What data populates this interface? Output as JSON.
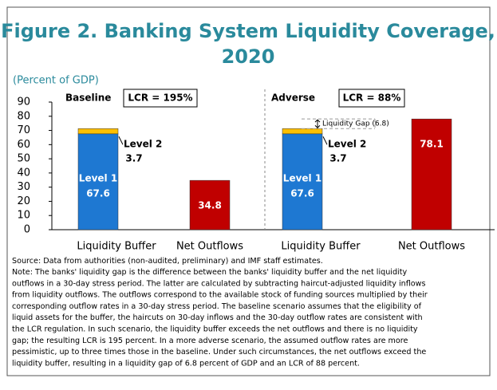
{
  "chart_data": {
    "type": "bar",
    "stacked": true,
    "title": [
      "Figure 2. Banking System Liquidity Coverage,",
      "2020"
    ],
    "subtitle": "(Percent of GDP)",
    "categories": [
      "Liquidity Buffer",
      "Net Outflows",
      "Liquidity Buffer",
      "Net Outflows"
    ],
    "series": [
      {
        "name": "Level 1",
        "color": "#1e78d2",
        "values": [
          67.6,
          null,
          67.6,
          null
        ]
      },
      {
        "name": "Level 2",
        "color": "#ffc000",
        "values": [
          3.7,
          null,
          3.7,
          null
        ]
      },
      {
        "color": "#c00000",
        "values": [
          null,
          34.8,
          null,
          78.1
        ]
      }
    ],
    "ylim": [
      0,
      90
    ],
    "yticks": [
      0,
      10,
      20,
      30,
      40,
      50,
      60,
      70,
      80,
      90
    ],
    "panels": [
      {
        "label": "Baseline",
        "lcr": "LCR = 195%"
      },
      {
        "label": "Adverse",
        "lcr": "LCR = 88%"
      }
    ],
    "gap_annotation": "Liquidity Gap (6.8)",
    "source": "Source: Data from authorities (non-audited, preliminary) and IMF staff estimates.",
    "note": [
      "Note: The banks' liquidity gap is the difference between the banks' liquidity buffer and the net liquidity",
      "outflows in a 30-day stress period. The latter are calculated by subtracting haircut-adjusted liquidity inflows",
      "from liquidity outflows. The outflows correspond to the available stock of funding sources multiplied by their",
      "corresponding outflow rates in a 30-day stress period. The baseline scenario assumes that the eligibility of",
      "liquid assets for the buffer, the haircuts on 30-day inflows and the 30-day outflow rates are consistent with",
      "the LCR regulation. In such scenario, the liquidity buffer exceeds the net outflows and there is no liquidity",
      "gap; the resulting LCR is 195 percent. In a more adverse scenario, the assumed outflow rates are more",
      "pessimistic, up to three times those in the baseline. Under such circumstances, the net outflows exceed the",
      "liquidity buffer, resulting in a liquidity gap of 6.8 percent of GDP and an LCR of 88 percent."
    ]
  }
}
